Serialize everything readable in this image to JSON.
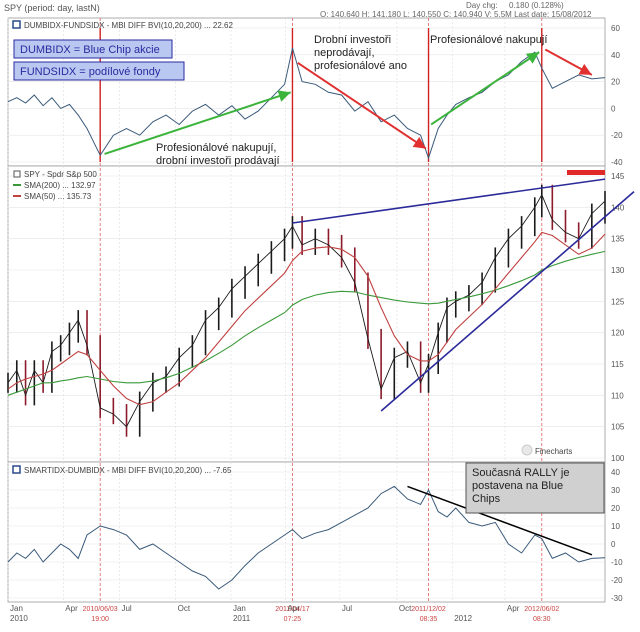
{
  "header": {
    "title": "SPY  (period: day, lastN)",
    "day_change_label": "Day chg:",
    "day_change_value": "0.180 (0.128%)",
    "ohlc": "O: 140.640   H: 141.180   L: 140.550   C: 140.940   V: 5.5M   Last date: 15/08/2012"
  },
  "colors": {
    "blue_line": "#2a2a9a",
    "green_arrow": "#3cb43c",
    "red_arrow": "#e03030",
    "sma200": "#3a9a3a",
    "sma50": "#c04040",
    "price_bar": "#1a1a1a",
    "price_bar_down": "#8b1a2a",
    "indicator": "#3a5a7a"
  },
  "panels": {
    "top": {
      "legend": "DUMBIDX-FUNDSIDX - MBI DIFF BVI(10,20,200) ... 22.62",
      "box1": "DUMBIDX = Blue Chip akcie",
      "box2": "FUNDSIDX = podílové fondy",
      "ann_left": [
        "Profesionálové nakupují,",
        "drobní investoři prodávají"
      ],
      "ann_mid": [
        "Drobní investoři",
        "neprodávají,",
        "profesionálové ano"
      ],
      "ann_right": "Profesionálové nakupují"
    },
    "mid": {
      "legend_spy": "SPY - Spdr S&p 500",
      "legend_sma200": "SMA(200) ... 132.97",
      "legend_sma50": "SMA(50) ... 135.73",
      "watermark": "Finecharts"
    },
    "bottom": {
      "legend": "SMARTIDX-DUMBIDX - MBI DIFF BVI(10,20,200) ... -7.65",
      "ann_box": [
        "Současná RALLY je",
        "postavena na Blue",
        "Chips"
      ]
    }
  },
  "x_axis": {
    "labels": [
      {
        "month": "Jan",
        "year": "2010",
        "x": 0
      },
      {
        "month": "Apr",
        "year": "",
        "x": 63
      },
      {
        "month": "Jul",
        "year": "",
        "x": 127
      },
      {
        "month": "Oct",
        "year": "",
        "x": 191
      },
      {
        "month": "Jan",
        "year": "2011",
        "x": 254
      },
      {
        "month": "Apr",
        "year": "",
        "x": 316
      },
      {
        "month": "Jul",
        "year": "",
        "x": 378
      },
      {
        "month": "Oct",
        "year": "",
        "x": 443
      },
      {
        "month": "",
        "year": "2012",
        "x": 506
      },
      {
        "month": "Apr",
        "year": "",
        "x": 566
      }
    ],
    "event_dates": [
      {
        "date": "2010/06/03",
        "time": "19:00",
        "x": 105
      },
      {
        "date": "2011/04/17",
        "time": "07:25",
        "x": 324
      },
      {
        "date": "2011/12/02",
        "time": "08:35",
        "x": 479
      },
      {
        "date": "2012/06/02",
        "time": "08:30",
        "x": 608
      }
    ]
  },
  "chart_data": [
    {
      "type": "line",
      "title": "DUMBIDX-FUNDSIDX - MBI DIFF BVI(10,20,200)",
      "last_value": 22.62,
      "ylim": [
        -40,
        60
      ],
      "y_ticks": [
        60,
        40,
        20,
        0,
        -20,
        -40
      ],
      "x": [
        0,
        10,
        20,
        30,
        40,
        50,
        60,
        70,
        80,
        90,
        105,
        120,
        135,
        150,
        165,
        180,
        195,
        210,
        225,
        240,
        255,
        270,
        285,
        300,
        315,
        324,
        335,
        350,
        365,
        380,
        395,
        410,
        425,
        440,
        455,
        470,
        479,
        490,
        500,
        510,
        525,
        540,
        555,
        570,
        585,
        600,
        608,
        620,
        635,
        650,
        665,
        680
      ],
      "values": [
        5,
        8,
        4,
        10,
        2,
        8,
        0,
        3,
        -5,
        -15,
        -35,
        -20,
        -15,
        -20,
        -10,
        -5,
        -12,
        -2,
        3,
        -5,
        2,
        -8,
        -2,
        8,
        18,
        45,
        20,
        18,
        12,
        10,
        -2,
        5,
        -10,
        -5,
        -15,
        -20,
        -37,
        -15,
        -5,
        3,
        8,
        12,
        20,
        25,
        35,
        42,
        30,
        15,
        20,
        25,
        22,
        23
      ],
      "series": [
        {
          "name": "DUMBIDX-FUNDSIDX",
          "values": "see values"
        }
      ],
      "annotations": [
        "Profesionálové nakupují, drobní investoři prodávají",
        "Drobní investoři neprodávají, profesionálové ano",
        "Profesionálové nakupují"
      ]
    },
    {
      "type": "line",
      "title": "SPY - Spdr S&p 500",
      "ylim": [
        100,
        145
      ],
      "y_ticks": [
        145,
        140,
        135,
        130,
        125,
        120,
        115,
        110,
        105,
        100
      ],
      "x": [
        0,
        10,
        20,
        30,
        40,
        50,
        60,
        70,
        80,
        90,
        105,
        120,
        135,
        150,
        165,
        180,
        195,
        210,
        225,
        240,
        255,
        270,
        285,
        300,
        315,
        324,
        335,
        350,
        365,
        380,
        395,
        410,
        425,
        440,
        455,
        470,
        479,
        490,
        500,
        510,
        525,
        540,
        555,
        570,
        585,
        600,
        608,
        620,
        635,
        650,
        665,
        680
      ],
      "series": [
        {
          "name": "SPY close",
          "values": [
            112,
            114,
            110,
            114,
            112,
            117,
            118,
            120,
            122,
            118,
            108,
            107,
            105,
            109,
            112,
            113,
            116,
            118,
            122,
            124,
            127,
            129,
            131,
            133,
            135,
            137,
            134,
            135,
            134,
            132,
            128,
            119,
            111,
            116,
            117,
            112,
            115,
            120,
            124,
            125,
            126,
            128,
            132,
            135,
            137,
            140,
            142,
            138,
            136,
            135,
            139,
            141
          ]
        },
        {
          "name": "SMA(200)",
          "last_value": 132.97,
          "values": [
            110,
            110.5,
            111,
            111.5,
            112,
            112,
            112.3,
            112.5,
            112.8,
            113,
            112.6,
            112.2,
            112,
            112,
            112.3,
            112.8,
            113.5,
            114.5,
            115.5,
            116.7,
            118,
            119.5,
            120.8,
            122,
            123.2,
            124.4,
            125.3,
            126,
            126.4,
            126.6,
            126.5,
            126,
            125.6,
            125.2,
            124.9,
            124.7,
            124.6,
            124.7,
            125,
            125.3,
            125.7,
            126.2,
            126.8,
            127.5,
            128.3,
            129.2,
            130,
            130.7,
            131.4,
            132,
            132.5,
            132.97
          ]
        },
        {
          "name": "SMA(50)",
          "last_value": 135.73,
          "values": [
            111,
            112,
            112.6,
            113,
            113.4,
            114,
            115,
            116,
            117,
            116.5,
            114,
            111.5,
            109.5,
            108.5,
            109,
            110.5,
            112,
            114,
            116,
            118.5,
            121,
            123.5,
            125.5,
            127.5,
            129.5,
            131.5,
            133,
            133.5,
            133.7,
            133.3,
            132,
            129,
            124,
            119.5,
            116.5,
            115.5,
            115.5,
            116.5,
            118.5,
            120.5,
            122.5,
            124.5,
            127,
            129.5,
            132,
            134.5,
            136,
            135.5,
            134,
            132.5,
            133.5,
            135.73
          ]
        }
      ],
      "trendlines": [
        "upper wedge line",
        "lower wedge line"
      ]
    },
    {
      "type": "line",
      "title": "SMARTIDX-DUMBIDX - MBI DIFF BVI(10,20,200)",
      "last_value": -7.65,
      "ylim": [
        -30,
        40
      ],
      "y_ticks": [
        40,
        30,
        20,
        10,
        0,
        -10,
        -20,
        -30
      ],
      "x": [
        0,
        10,
        20,
        30,
        40,
        50,
        60,
        70,
        80,
        90,
        105,
        120,
        135,
        150,
        165,
        180,
        195,
        210,
        225,
        240,
        255,
        270,
        285,
        300,
        315,
        324,
        335,
        350,
        365,
        380,
        395,
        410,
        425,
        440,
        455,
        470,
        479,
        490,
        500,
        510,
        525,
        540,
        555,
        570,
        585,
        600,
        608,
        620,
        635,
        650,
        665,
        680
      ],
      "values": [
        -10,
        -5,
        -8,
        -3,
        -10,
        -5,
        0,
        -3,
        -8,
        5,
        10,
        8,
        5,
        -3,
        0,
        -5,
        -10,
        -15,
        -18,
        -25,
        -20,
        -12,
        -5,
        0,
        5,
        8,
        3,
        6,
        8,
        12,
        16,
        20,
        28,
        32,
        25,
        22,
        30,
        18,
        15,
        20,
        12,
        10,
        12,
        0,
        -5,
        5,
        3,
        -8,
        -5,
        -10,
        -8,
        -7.65
      ]
    }
  ]
}
